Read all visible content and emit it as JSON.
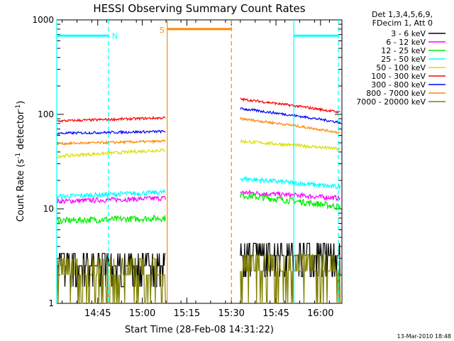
{
  "chart_data": {
    "type": "line",
    "title": "HESSI Observing Summary Count Rates",
    "xlabel": "Start Time (28-Feb-08 14:31:22)",
    "ylabel_base": "Count Rate (s",
    "ylabel_sup1": "-1",
    "ylabel_mid": " detector",
    "ylabel_sup2": "-1",
    "ylabel_end": ")",
    "y_scale": "log",
    "ylim": [
      1,
      1000
    ],
    "xlim_minutes": [
      14.52,
      16.12
    ],
    "x_tick_labels": [
      "14:45",
      "15:00",
      "15:15",
      "15:30",
      "15:45",
      "16:00"
    ],
    "x_ticks_hours": [
      14.75,
      15.0,
      15.25,
      15.5,
      15.75,
      16.0
    ],
    "y_tick_labels": [
      "1",
      "10",
      "100",
      "1000"
    ],
    "y_ticks": [
      1,
      10,
      100,
      1000
    ],
    "legend_header": [
      "Det 1,3,4,5,6,9,",
      "FDecim 1, Att 0"
    ],
    "legend_placement": "right",
    "series": [
      {
        "name": "3 - 6 keV",
        "color": "#000000",
        "seg1": [
          2.5,
          2.5
        ],
        "seg2": [
          3.2,
          3.2
        ],
        "noise": 0.25
      },
      {
        "name": "6 - 12 keV",
        "color": "#ff00ff",
        "seg1": [
          12.0,
          13.0
        ],
        "seg2": [
          15.0,
          13.0
        ],
        "noise": 0.06
      },
      {
        "name": "12 - 25 keV",
        "color": "#00ee00",
        "seg1": [
          7.5,
          8.0
        ],
        "seg2": [
          14.0,
          10.5
        ],
        "noise": 0.08
      },
      {
        "name": "25 - 50 keV",
        "color": "#00ffff",
        "seg1": [
          13.5,
          15.0
        ],
        "seg2": [
          21.0,
          17.0
        ],
        "noise": 0.06
      },
      {
        "name": "50 - 100 keV",
        "color": "#dddd00",
        "seg1": [
          36.0,
          42.0
        ],
        "seg2": [
          52.0,
          43.0
        ],
        "noise": 0.04
      },
      {
        "name": "100 - 300 keV",
        "color": "#ff0000",
        "seg1": [
          85.0,
          92.0
        ],
        "seg2": [
          145.0,
          105.0
        ],
        "noise": 0.03
      },
      {
        "name": "300 - 800 keV",
        "color": "#0000ff",
        "seg1": [
          63.0,
          66.0
        ],
        "seg2": [
          115.0,
          82.0
        ],
        "noise": 0.03
      },
      {
        "name": "800 - 7000 keV",
        "color": "#ff8800",
        "seg1": [
          49.0,
          52.0
        ],
        "seg2": [
          90.0,
          64.0
        ],
        "noise": 0.03
      },
      {
        "name": "7000 - 20000 keV",
        "color": "#808000",
        "seg1": [
          2.0,
          2.0
        ],
        "seg2": [
          2.2,
          2.2
        ],
        "noise": 0.35
      }
    ],
    "data_segments_hours": [
      [
        14.52,
        15.13
      ],
      [
        15.55,
        16.11
      ]
    ],
    "saa_flag": {
      "label": "S",
      "start": 15.14,
      "end": 15.5,
      "level": 800,
      "color": "#ff8800"
    },
    "night_flags": [
      {
        "label": "N",
        "start": 14.52,
        "end": 14.81,
        "level": 680,
        "color": "#00ffff"
      },
      {
        "label": "",
        "start": 15.85,
        "end": 16.1,
        "level": 680,
        "color": "#00ffff"
      }
    ],
    "vertical_markers": [
      {
        "x": 14.52,
        "color": "#00ffff",
        "style": "solid"
      },
      {
        "x": 14.81,
        "color": "#00ffff",
        "style": "dashed"
      },
      {
        "x": 15.14,
        "color": "#ff8800",
        "style": "solid"
      },
      {
        "x": 15.5,
        "color": "#ff8800",
        "style": "dashed"
      },
      {
        "x": 15.85,
        "color": "#00ffff",
        "style": "solid"
      },
      {
        "x": 16.1,
        "color": "#00ffff",
        "style": "dashed"
      }
    ]
  },
  "footer_date": "13-Mar-2010 18:48"
}
